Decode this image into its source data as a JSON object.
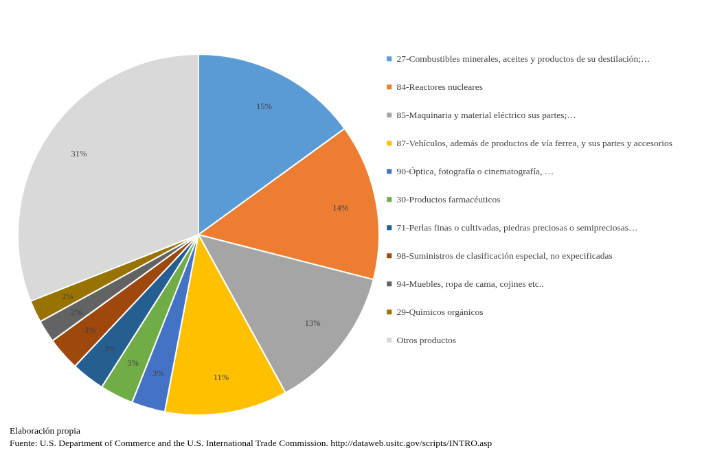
{
  "chart_data": {
    "type": "pie",
    "categories": [
      "27-Combustibles  minerales,  aceites y productos de su destilación;…",
      "84-Reactores nucleares",
      "85-Maquinaria  y material  eléctrico sus partes;…",
      "87-Vehículos, además de productos de vía ferrea, y sus partes y accesorios",
      "90-Óptica,  fotografía o cinematografía,  …",
      "30-Productos farmacéuticos",
      "71-Perlas  finas o cultivadas, piedras preciosas o semipreciosas…",
      "98-Suministros de clasificación especial, no expecificadas",
      "94-Muebles, ropa de cama, cojines etc..",
      "29-Químicos orgánicos",
      "Otros productos"
    ],
    "values": [
      15,
      14,
      13,
      11,
      3,
      3,
      3,
      3,
      2,
      2,
      31
    ],
    "value_labels": [
      "15%",
      "14%",
      "13%",
      "11%",
      "3%",
      "3%",
      "3%",
      "3%",
      "2%",
      "2%",
      "31%"
    ],
    "colors": [
      "#5b9bd5",
      "#ed7d31",
      "#a5a5a5",
      "#ffc000",
      "#4472c4",
      "#70ad47",
      "#255e91",
      "#9e480e",
      "#636363",
      "#997300",
      "#d9d9d9"
    ],
    "legend": "right",
    "annotations": [
      "Elaboración propia",
      "Fuente: U.S. Department of Commerce  and the U.S.  International Trade Commission.  http://dataweb.usitc.gov/scripts/INTRO.asp"
    ]
  }
}
